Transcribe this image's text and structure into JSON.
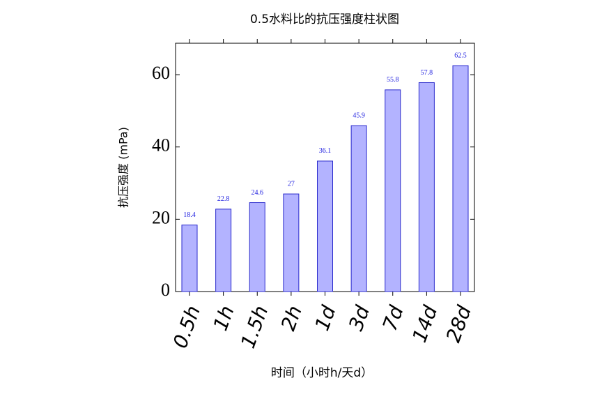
{
  "chart_data": {
    "type": "bar",
    "title": "0.5水料比的抗压强度柱状图",
    "y_label": "抗压强度 (mPa)",
    "x_label": "时间（小时h/天d）",
    "categories": [
      "0.5h",
      "1h",
      "1.5h",
      "2h",
      "1d",
      "3d",
      "7d",
      "14d",
      "28d"
    ],
    "values": [
      18.4,
      22.8,
      24.6,
      27,
      36.1,
      45.9,
      55.8,
      57.8,
      62.5
    ],
    "color": "#b3b3ff",
    "edge_color": "#2a2acc",
    "ylim": [
      0,
      68.7
    ],
    "yticks": [
      0,
      20,
      40,
      60
    ]
  }
}
